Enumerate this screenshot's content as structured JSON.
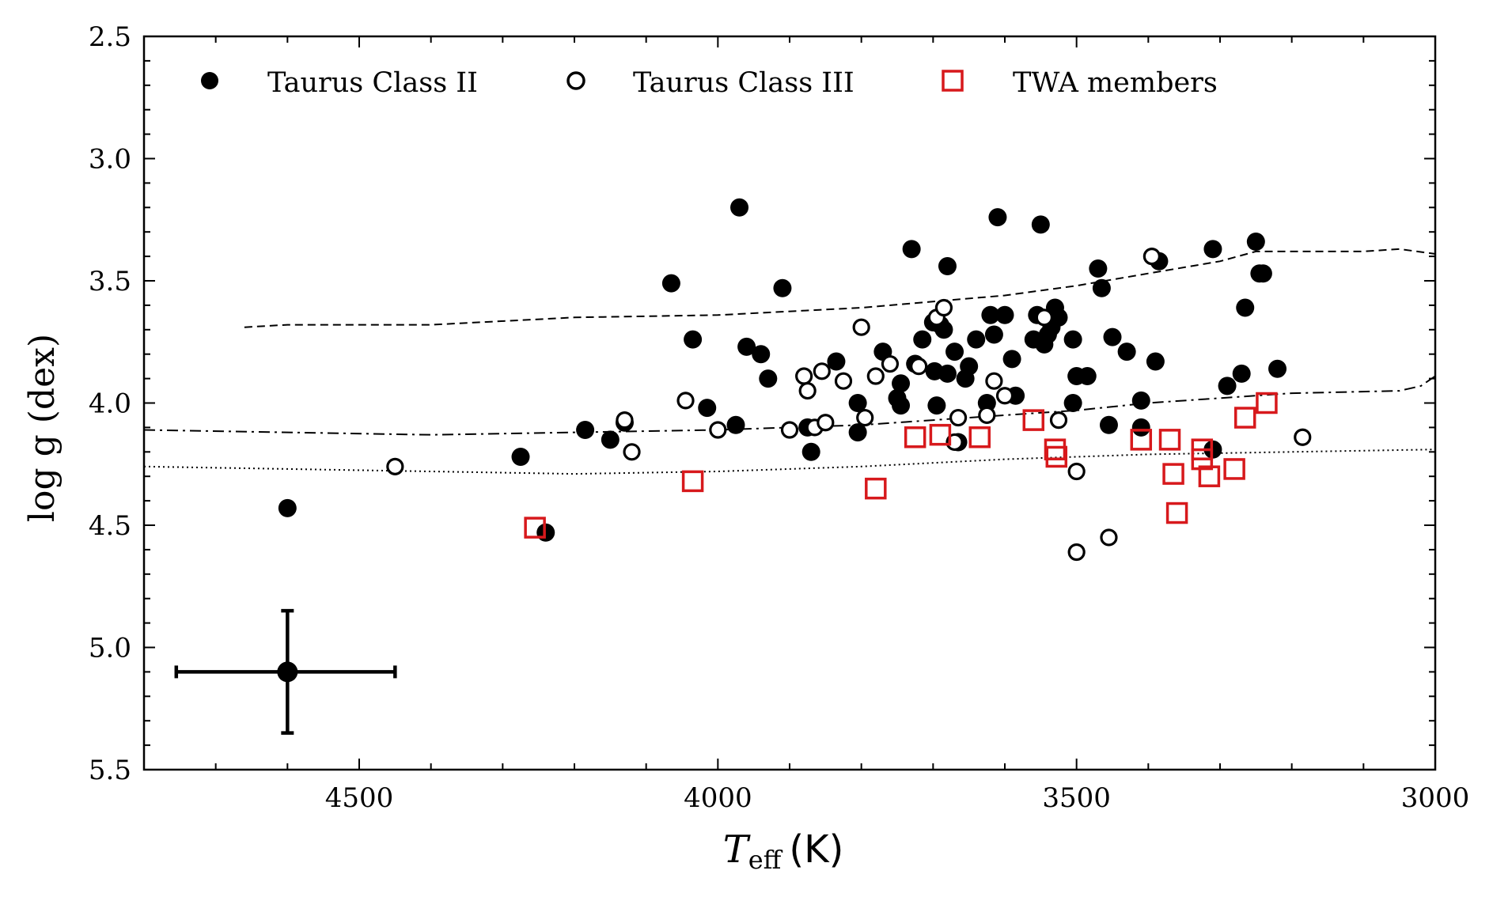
{
  "chart_data": {
    "type": "scatter",
    "title": "",
    "xlabel": {
      "symbol": "T",
      "subscript": "eff",
      "unit": "(K)"
    },
    "ylabel": "log g (dex)",
    "xlim": [
      4800,
      3000
    ],
    "ylim": [
      5.5,
      2.5
    ],
    "x_inverted": true,
    "y_inverted": true,
    "x_ticks": [
      4500,
      4000,
      3500,
      3000
    ],
    "x_tick_labels": [
      "4500",
      "4000",
      "3500",
      "3000"
    ],
    "y_ticks": [
      2.5,
      3.0,
      3.5,
      4.0,
      4.5,
      5.0,
      5.5
    ],
    "y_tick_labels": [
      "2.5",
      "3.0",
      "3.5",
      "4.0",
      "4.5",
      "5.0",
      "5.5"
    ],
    "legend_position": "top",
    "series": [
      {
        "name": "Taurus Class II",
        "marker": "filled-circle",
        "color": "#000000",
        "points": [
          [
            4600,
            4.43
          ],
          [
            4275,
            4.22
          ],
          [
            4240,
            4.53
          ],
          [
            4065,
            3.51
          ],
          [
            4035,
            3.74
          ],
          [
            4015,
            4.02
          ],
          [
            3975,
            4.09
          ],
          [
            3970,
            3.2
          ],
          [
            3960,
            3.77
          ],
          [
            3940,
            3.8
          ],
          [
            3930,
            3.9
          ],
          [
            3910,
            3.53
          ],
          [
            3835,
            3.83
          ],
          [
            3875,
            4.1
          ],
          [
            3870,
            4.2
          ],
          [
            4185,
            4.11
          ],
          [
            4150,
            4.15
          ],
          [
            4130,
            4.08
          ],
          [
            3805,
            4.12
          ],
          [
            3805,
            4.0
          ],
          [
            3770,
            3.79
          ],
          [
            3750,
            3.98
          ],
          [
            3745,
            3.92
          ],
          [
            3745,
            4.01
          ],
          [
            3730,
            3.37
          ],
          [
            3725,
            3.84
          ],
          [
            3715,
            3.74
          ],
          [
            3700,
            3.67
          ],
          [
            3698,
            3.87
          ],
          [
            3695,
            4.01
          ],
          [
            3690,
            3.68
          ],
          [
            3685,
            3.7
          ],
          [
            3680,
            3.44
          ],
          [
            3680,
            3.88
          ],
          [
            3670,
            3.79
          ],
          [
            3665,
            4.16
          ],
          [
            3655,
            3.9
          ],
          [
            3650,
            3.85
          ],
          [
            3640,
            3.74
          ],
          [
            3625,
            4.0
          ],
          [
            3620,
            3.64
          ],
          [
            3615,
            3.72
          ],
          [
            3610,
            3.24
          ],
          [
            3600,
            3.64
          ],
          [
            3590,
            3.82
          ],
          [
            3585,
            3.97
          ],
          [
            3560,
            3.74
          ],
          [
            3555,
            3.64
          ],
          [
            3550,
            3.27
          ],
          [
            3545,
            3.76
          ],
          [
            3540,
            3.72
          ],
          [
            3535,
            3.69
          ],
          [
            3530,
            3.61
          ],
          [
            3525,
            3.65
          ],
          [
            3505,
            3.74
          ],
          [
            3505,
            4.0
          ],
          [
            3500,
            3.89
          ],
          [
            3485,
            3.89
          ],
          [
            3470,
            3.45
          ],
          [
            3465,
            3.53
          ],
          [
            3455,
            4.09
          ],
          [
            3450,
            3.73
          ],
          [
            3430,
            3.79
          ],
          [
            3410,
            3.99
          ],
          [
            3410,
            4.1
          ],
          [
            3390,
            3.83
          ],
          [
            3385,
            3.42
          ],
          [
            3310,
            3.37
          ],
          [
            3310,
            4.19
          ],
          [
            3290,
            3.93
          ],
          [
            3270,
            3.88
          ],
          [
            3265,
            3.61
          ],
          [
            3250,
            3.34
          ],
          [
            3245,
            3.47
          ],
          [
            3240,
            3.47
          ],
          [
            3220,
            3.86
          ]
        ]
      },
      {
        "name": "Taurus Class III",
        "marker": "open-circle",
        "color": "#000000",
        "points": [
          [
            4450,
            4.26
          ],
          [
            4130,
            4.07
          ],
          [
            4120,
            4.2
          ],
          [
            4045,
            3.99
          ],
          [
            4000,
            4.11
          ],
          [
            3900,
            4.11
          ],
          [
            3880,
            3.89
          ],
          [
            3875,
            3.95
          ],
          [
            3865,
            4.1
          ],
          [
            3855,
            3.87
          ],
          [
            3850,
            4.08
          ],
          [
            3825,
            3.91
          ],
          [
            3800,
            3.69
          ],
          [
            3795,
            4.06
          ],
          [
            3780,
            3.89
          ],
          [
            3760,
            3.84
          ],
          [
            3720,
            3.85
          ],
          [
            3695,
            3.65
          ],
          [
            3685,
            3.61
          ],
          [
            3670,
            4.16
          ],
          [
            3665,
            4.06
          ],
          [
            3625,
            4.05
          ],
          [
            3615,
            3.91
          ],
          [
            3600,
            3.97
          ],
          [
            3545,
            3.65
          ],
          [
            3525,
            4.07
          ],
          [
            3500,
            4.28
          ],
          [
            3500,
            4.61
          ],
          [
            3455,
            4.55
          ],
          [
            3395,
            3.4
          ],
          [
            3185,
            4.14
          ]
        ]
      },
      {
        "name": "TWA members",
        "marker": "open-square",
        "color": "#d7191c",
        "points": [
          [
            4255,
            4.51
          ],
          [
            4035,
            4.32
          ],
          [
            3780,
            4.35
          ],
          [
            3725,
            4.14
          ],
          [
            3690,
            4.13
          ],
          [
            3635,
            4.14
          ],
          [
            3560,
            4.07
          ],
          [
            3530,
            4.19
          ],
          [
            3528,
            4.22
          ],
          [
            3410,
            4.15
          ],
          [
            3370,
            4.15
          ],
          [
            3365,
            4.29
          ],
          [
            3360,
            4.45
          ],
          [
            3325,
            4.19
          ],
          [
            3325,
            4.23
          ],
          [
            3315,
            4.3
          ],
          [
            3280,
            4.27
          ],
          [
            3265,
            4.06
          ],
          [
            3235,
            4.0
          ]
        ]
      }
    ],
    "lines": [
      {
        "name": "dashed-track",
        "style": "dashed",
        "points": [
          [
            4660,
            3.69
          ],
          [
            4600,
            3.68
          ],
          [
            4400,
            3.68
          ],
          [
            4200,
            3.65
          ],
          [
            4000,
            3.64
          ],
          [
            3800,
            3.61
          ],
          [
            3600,
            3.56
          ],
          [
            3500,
            3.52
          ],
          [
            3400,
            3.47
          ],
          [
            3300,
            3.42
          ],
          [
            3250,
            3.38
          ],
          [
            3100,
            3.38
          ],
          [
            3050,
            3.37
          ],
          [
            3000,
            3.39
          ]
        ]
      },
      {
        "name": "dashdot-track",
        "style": "dashdot",
        "points": [
          [
            4800,
            4.11
          ],
          [
            4600,
            4.12
          ],
          [
            4400,
            4.13
          ],
          [
            4200,
            4.12
          ],
          [
            4000,
            4.11
          ],
          [
            3800,
            4.09
          ],
          [
            3600,
            4.05
          ],
          [
            3500,
            4.03
          ],
          [
            3400,
            4.0
          ],
          [
            3300,
            3.98
          ],
          [
            3200,
            3.96
          ],
          [
            3050,
            3.95
          ],
          [
            3020,
            3.93
          ],
          [
            3000,
            3.89
          ]
        ]
      },
      {
        "name": "dotted-track",
        "style": "dotted",
        "points": [
          [
            4800,
            4.26
          ],
          [
            4600,
            4.27
          ],
          [
            4400,
            4.28
          ],
          [
            4200,
            4.29
          ],
          [
            4000,
            4.28
          ],
          [
            3800,
            4.26
          ],
          [
            3600,
            4.23
          ],
          [
            3400,
            4.21
          ],
          [
            3200,
            4.2
          ],
          [
            3000,
            4.19
          ]
        ]
      }
    ],
    "representative_error": {
      "x": 4600,
      "y": 5.1,
      "xerr": [
        4755,
        4450
      ],
      "yerr": [
        4.85,
        5.35
      ]
    }
  }
}
